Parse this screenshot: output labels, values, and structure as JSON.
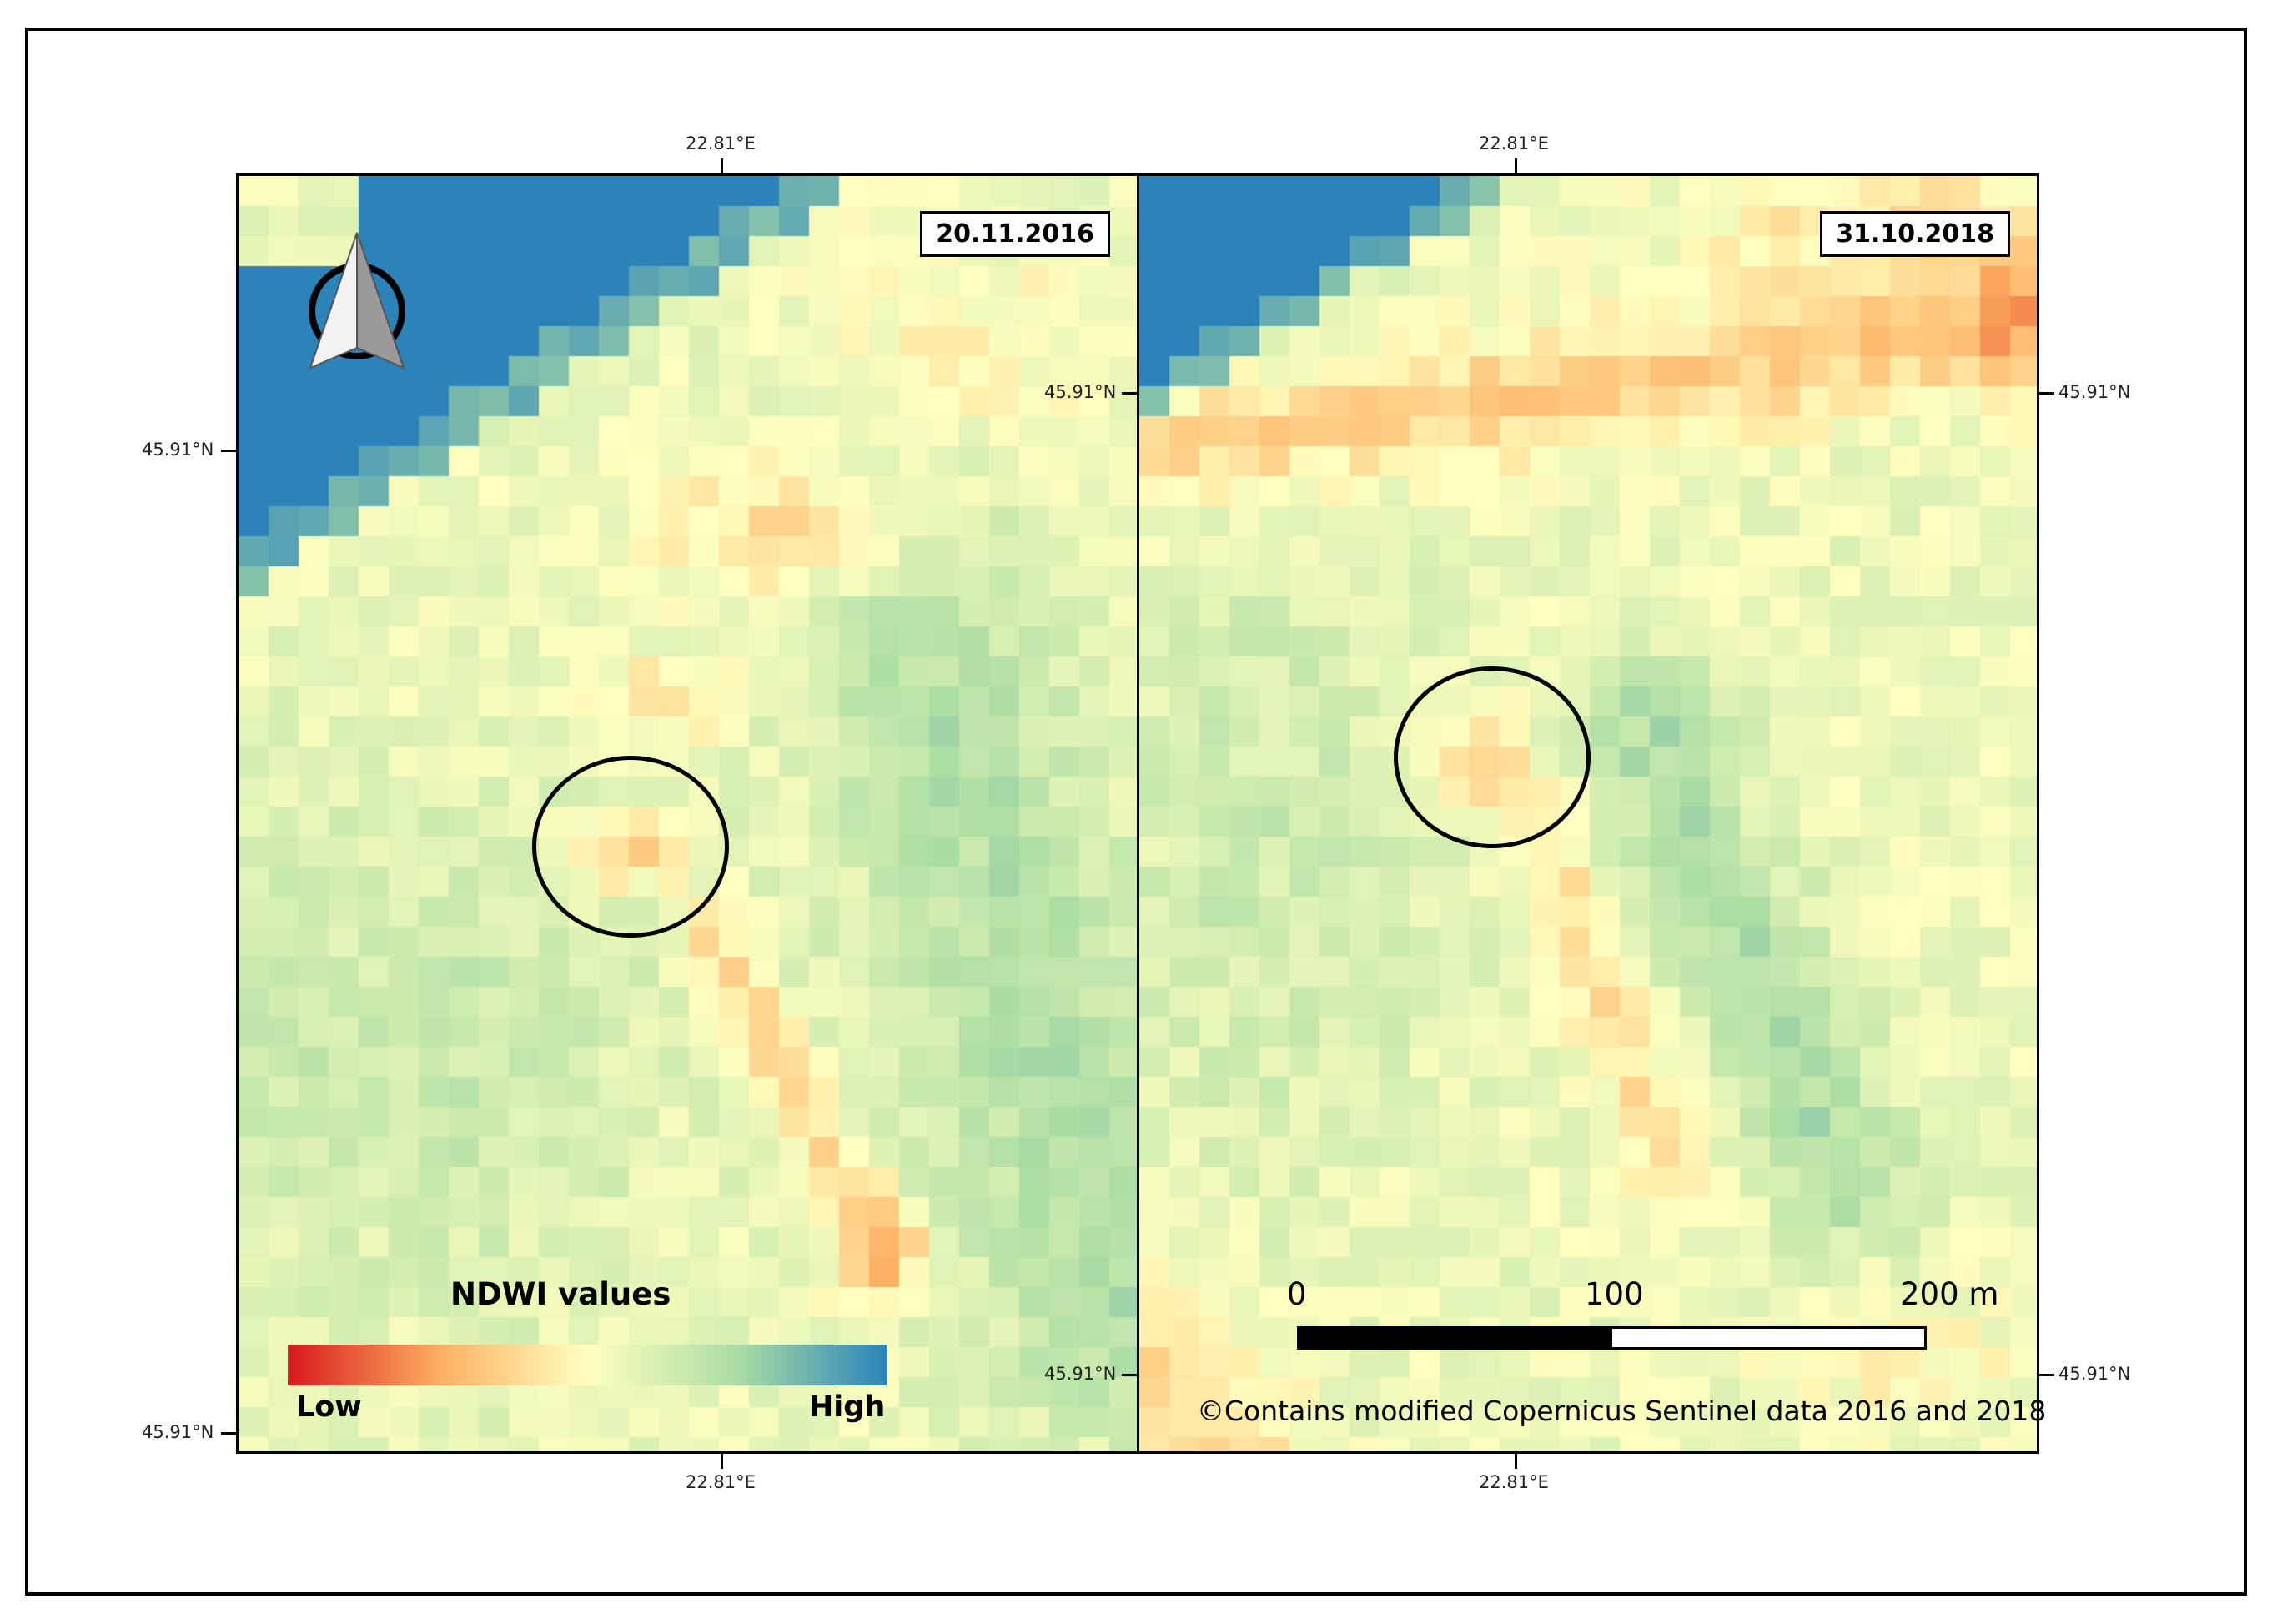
{
  "map": {
    "panels": [
      {
        "date": "20.11.2016"
      },
      {
        "date": "31.10.2018"
      }
    ],
    "coords": {
      "top_lon_left": "22.81°E",
      "top_lon_right": "22.81°E",
      "bottom_lon_left": "22.81°E",
      "bottom_lon_right": "22.81°E",
      "lat_left_upper": "45.91°N",
      "lat_left_lower": "45.91°N",
      "lat_mid_upper": "45.91°N",
      "lat_mid_lower": "45.91°N",
      "lat_right_upper": "45.91°N",
      "lat_right_lower": "45.91°N"
    },
    "legend": {
      "title": "NDWI values",
      "low": "Low",
      "high": "High",
      "colors": [
        "#d7191c",
        "#fdae61",
        "#ffffbf",
        "#abdda4",
        "#2b83ba"
      ]
    },
    "scale": {
      "labels": [
        "0",
        "100",
        "200 m"
      ]
    },
    "credit": "©Contains modified Copernicus Sentinel data 2016 and 2018",
    "icons": [
      "north-arrow-icon"
    ]
  }
}
